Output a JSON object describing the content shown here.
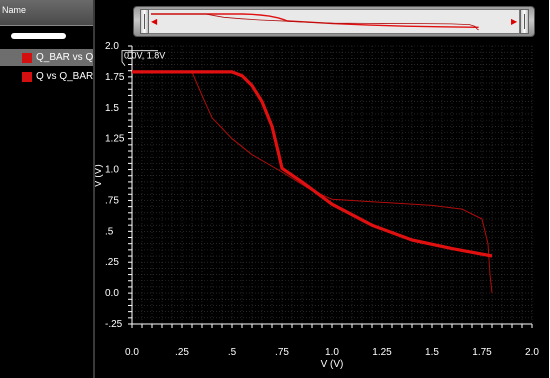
{
  "legend": {
    "header": "Name",
    "items": [
      {
        "label": "Q_BAR vs Q",
        "selected": true,
        "color": "#d40f0f"
      },
      {
        "label": "Q vs Q_BAR",
        "selected": false,
        "color": "#d40f0f"
      }
    ]
  },
  "marker": {
    "label": "0.0V, 1.8V"
  },
  "chart_data": {
    "type": "line",
    "xlabel": "V (V)",
    "ylabel": "V (V)",
    "xlim": [
      0,
      2.0
    ],
    "ylim": [
      -0.25,
      2.0
    ],
    "x_ticks": [
      {
        "v": 0.0,
        "label": "0.0"
      },
      {
        "v": 0.25,
        "label": ".25"
      },
      {
        "v": 0.5,
        "label": ".5"
      },
      {
        "v": 0.75,
        "label": ".75"
      },
      {
        "v": 1.0,
        "label": "1.0"
      },
      {
        "v": 1.25,
        "label": "1.25"
      },
      {
        "v": 1.5,
        "label": "1.5"
      },
      {
        "v": 1.75,
        "label": "1.75"
      },
      {
        "v": 2.0,
        "label": "2.0"
      }
    ],
    "y_ticks": [
      {
        "v": 2.0,
        "label": "2.0"
      },
      {
        "v": 1.75,
        "label": "1.75"
      },
      {
        "v": 1.5,
        "label": "1.5"
      },
      {
        "v": 1.25,
        "label": "1.25"
      },
      {
        "v": 1.0,
        "label": "1.0"
      },
      {
        "v": 0.75,
        "label": ".75"
      },
      {
        "v": 0.5,
        "label": ".5"
      },
      {
        "v": 0.25,
        "label": ".25"
      },
      {
        "v": 0.0,
        "label": "0.0"
      },
      {
        "v": -0.25,
        "label": "-.25"
      }
    ],
    "grid": true,
    "series": [
      {
        "name": "Q vs Q_BAR",
        "color": "#e01010",
        "weight": "thick",
        "points": [
          [
            0.0,
            1.79
          ],
          [
            0.5,
            1.79
          ],
          [
            0.55,
            1.76
          ],
          [
            0.6,
            1.68
          ],
          [
            0.65,
            1.55
          ],
          [
            0.7,
            1.35
          ],
          [
            0.73,
            1.15
          ],
          [
            0.75,
            1.01
          ],
          [
            0.85,
            0.9
          ],
          [
            1.0,
            0.72
          ],
          [
            1.2,
            0.55
          ],
          [
            1.4,
            0.43
          ],
          [
            1.6,
            0.36
          ],
          [
            1.8,
            0.3
          ]
        ]
      },
      {
        "name": "Q_BAR vs Q",
        "color": "#b00d0d",
        "weight": "thin",
        "points": [
          [
            0.0,
            1.79
          ],
          [
            0.3,
            1.79
          ],
          [
            0.35,
            1.6
          ],
          [
            0.4,
            1.42
          ],
          [
            0.5,
            1.25
          ],
          [
            0.6,
            1.12
          ],
          [
            0.75,
            0.98
          ],
          [
            0.9,
            0.83
          ],
          [
            1.0,
            0.76
          ],
          [
            1.2,
            0.74
          ],
          [
            1.5,
            0.71
          ],
          [
            1.65,
            0.68
          ],
          [
            1.75,
            0.6
          ],
          [
            1.78,
            0.4
          ],
          [
            1.79,
            0.15
          ],
          [
            1.8,
            0.0
          ]
        ]
      }
    ]
  }
}
